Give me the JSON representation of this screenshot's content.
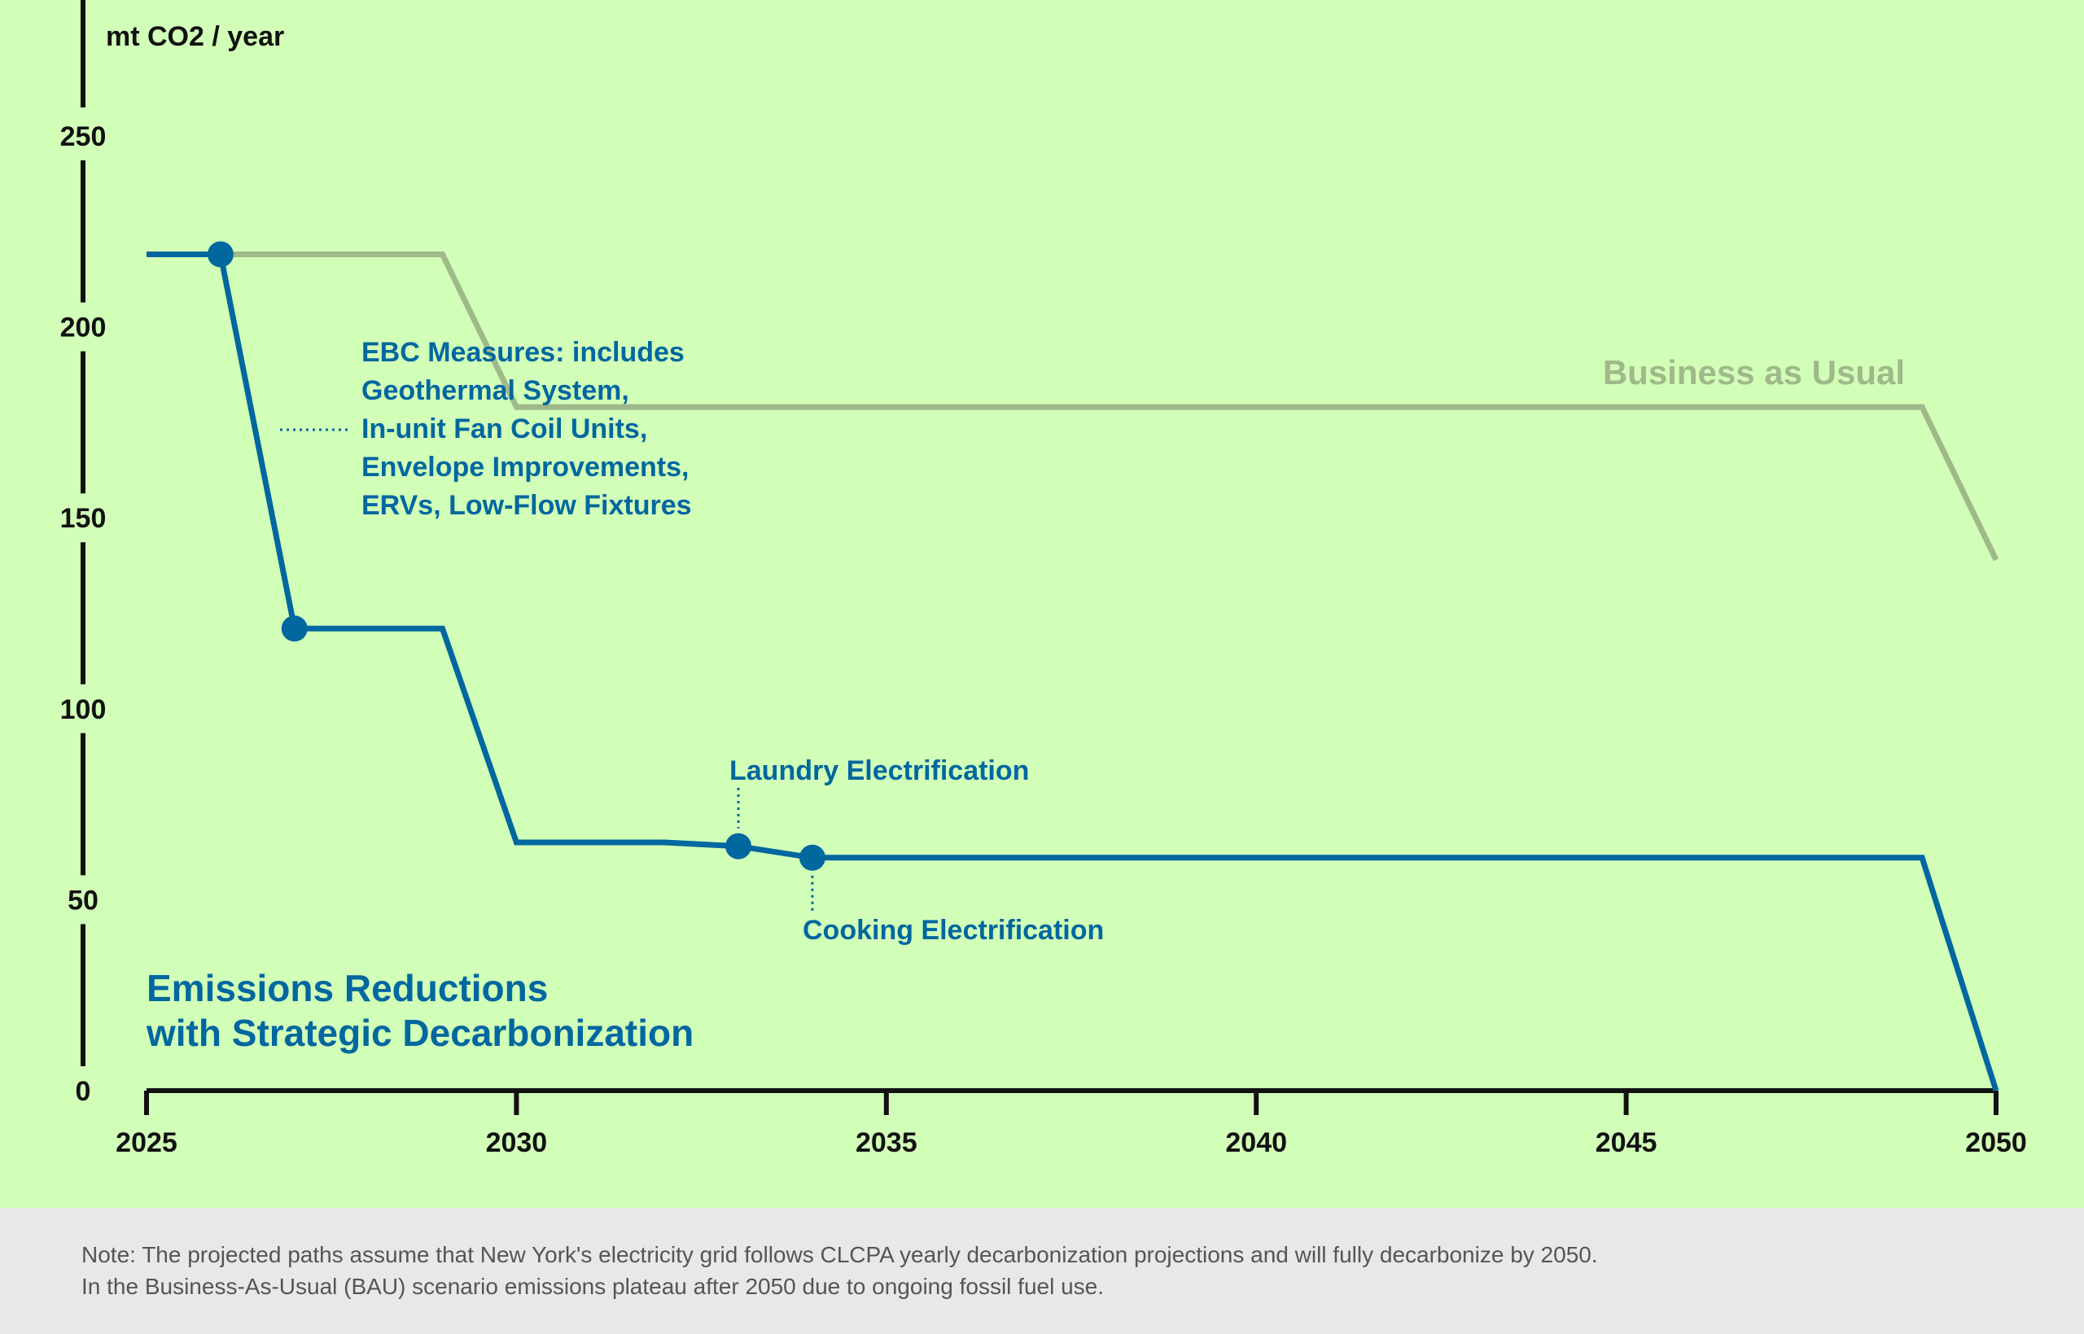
{
  "chart_data": {
    "type": "line",
    "ylabel": "mt CO2 / year",
    "xlim": [
      2025,
      2050
    ],
    "ylim": [
      0,
      250
    ],
    "x_ticks": [
      "2025",
      "2030",
      "2035",
      "2040",
      "2045",
      "2050"
    ],
    "y_ticks": [
      "0",
      "50",
      "100",
      "150",
      "200",
      "250"
    ],
    "grid": false,
    "colors": {
      "decarbonization": "#00679f",
      "bau": "#9fb98a",
      "background": "#d2ffb8",
      "note_background": "#e8e8e8"
    },
    "series": [
      {
        "name": "Business as Usual",
        "points": [
          [
            2025,
            219
          ],
          [
            2029,
            219
          ],
          [
            2030,
            179
          ],
          [
            2049,
            179
          ],
          [
            2050,
            139
          ]
        ]
      },
      {
        "name": "Emissions Reductions with Strategic Decarbonization",
        "points": [
          [
            2025,
            219
          ],
          [
            2026,
            219
          ],
          [
            2027,
            121
          ],
          [
            2029,
            121
          ],
          [
            2030,
            65
          ],
          [
            2032,
            65
          ],
          [
            2033,
            64
          ],
          [
            2034,
            61
          ],
          [
            2049,
            61
          ],
          [
            2050,
            0
          ]
        ],
        "markers": [
          [
            2026,
            219
          ],
          [
            2027,
            121
          ],
          [
            2033,
            64
          ],
          [
            2034,
            61
          ]
        ]
      }
    ],
    "series_labels": {
      "bau": "Business as Usual",
      "decarb_line1": "Emissions Reductions",
      "decarb_line2": "with Strategic Decarbonization"
    },
    "annotations": {
      "ebc": [
        "EBC Measures: includes",
        "Geothermal System,",
        "In-unit Fan Coil Units,",
        "Envelope Improvements,",
        "ERVs, Low-Flow Fixtures"
      ],
      "laundry": "Laundry Electrification",
      "cooking": "Cooking Electrification"
    }
  },
  "note": {
    "line1": "Note: The projected paths assume that New York's electricity grid follows CLCPA yearly decarbonization projections and will fully decarbonize by 2050.",
    "line2": "In the Business-As-Usual (BAU) scenario emissions plateau after 2050 due to ongoing fossil fuel use."
  }
}
